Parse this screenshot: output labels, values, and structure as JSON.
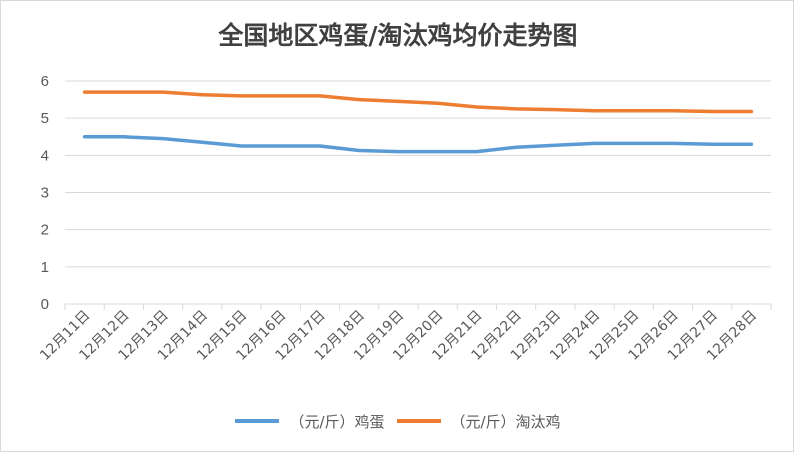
{
  "chart_data": {
    "type": "line",
    "title": "全国地区鸡蛋/淘汰鸡均价走势图",
    "xlabel": "",
    "ylabel": "",
    "categories": [
      "12月11日",
      "12月12日",
      "12月13日",
      "12月14日",
      "12月15日",
      "12月16日",
      "12月17日",
      "12月18日",
      "12月19日",
      "12月20日",
      "12月21日",
      "12月22日",
      "12月23日",
      "12月24日",
      "12月25日",
      "12月26日",
      "12月27日",
      "12月28日"
    ],
    "ylim": [
      0,
      6
    ],
    "yticks": [
      "0",
      "1",
      "2",
      "3",
      "4",
      "5",
      "6"
    ],
    "grid": true,
    "legend_position": "bottom",
    "series": [
      {
        "name": "（元/斤）鸡蛋",
        "color": "#5b9bd5",
        "values": [
          4.5,
          4.5,
          4.45,
          4.35,
          4.25,
          4.25,
          4.25,
          4.13,
          4.1,
          4.1,
          4.1,
          4.22,
          4.27,
          4.32,
          4.32,
          4.32,
          4.3,
          4.3
        ]
      },
      {
        "name": "（元/斤）淘汰鸡",
        "color": "#ed7d31",
        "values": [
          5.7,
          5.7,
          5.7,
          5.63,
          5.6,
          5.6,
          5.6,
          5.5,
          5.45,
          5.4,
          5.3,
          5.25,
          5.23,
          5.2,
          5.2,
          5.2,
          5.18,
          5.18
        ]
      }
    ]
  },
  "colors": {
    "grid": "#d9d9d9",
    "axis_text": "#595959"
  }
}
